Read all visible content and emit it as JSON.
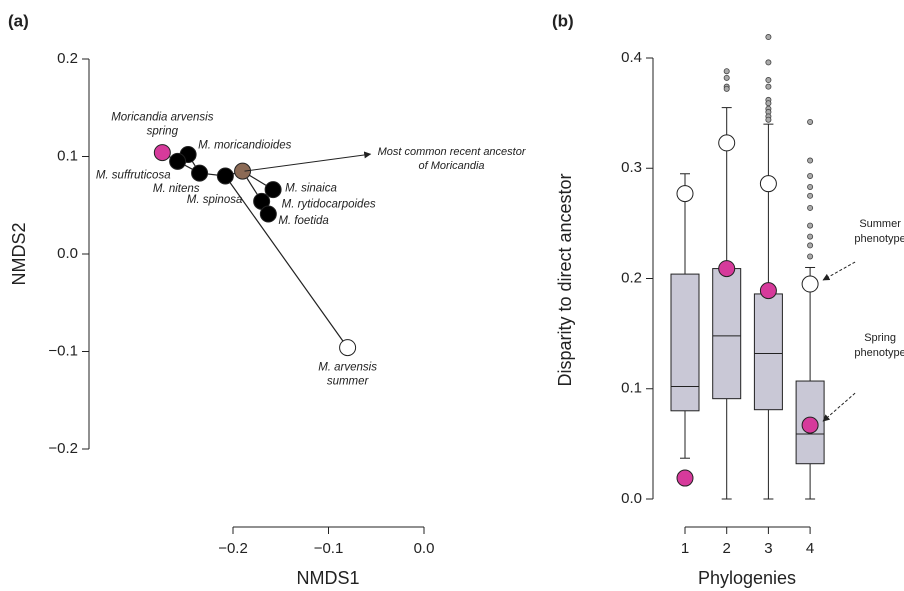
{
  "chart_data": [
    {
      "type": "scatter",
      "panel_label": "(a)",
      "xlabel": "NMDS1",
      "ylabel": "NMDS2",
      "xlim": [
        -0.3,
        0.0
      ],
      "ylim": [
        -0.2,
        0.2
      ],
      "xticks": [
        {
          "value": -0.2,
          "label": "−0.2"
        },
        {
          "value": -0.1,
          "label": "−0.1"
        },
        {
          "value": 0.0,
          "label": "0.0"
        }
      ],
      "yticks": [
        {
          "value": -0.2,
          "label": "−0.2"
        },
        {
          "value": -0.1,
          "label": "−0.1"
        },
        {
          "value": 0.0,
          "label": "0.0"
        },
        {
          "value": 0.1,
          "label": "0.1"
        },
        {
          "value": 0.2,
          "label": "0.2"
        }
      ],
      "labels": [
        [
          "Moricandia arvensis",
          "spring"
        ],
        [
          "M. moricandioides"
        ],
        [
          "M. suffruticosa"
        ],
        [
          "M. nitens"
        ],
        [
          "M. spinosa"
        ],
        null,
        [
          "M. sinaica"
        ],
        [
          "M. rytidocarpoides"
        ],
        [
          "M. foetida"
        ],
        [
          "M. arvensis",
          "summer"
        ]
      ],
      "x": [
        -0.274,
        -0.247,
        -0.258,
        -0.235,
        -0.208,
        -0.19,
        -0.158,
        -0.17,
        -0.163,
        -0.08
      ],
      "y": [
        0.104,
        0.102,
        0.095,
        0.083,
        0.08,
        0.085,
        0.066,
        0.054,
        0.041,
        -0.096
      ],
      "colors": [
        "#d63a9b",
        "#000000",
        "#000000",
        "#000000",
        "#000000",
        "#8b6a55",
        "#000000",
        "#000000",
        "#000000",
        "#ffffff"
      ],
      "annotation": [
        "Most common recent ancestor",
        "of Moricandia"
      ]
    },
    {
      "type": "box",
      "panel_label": "(b)",
      "xlabel": "Phylogenies",
      "ylabel": "Disparity to direct ancestor",
      "categories": [
        "1",
        "2",
        "3",
        "4"
      ],
      "ylim": [
        0,
        0.4
      ],
      "yticks": [
        {
          "value": 0,
          "label": "0.0"
        },
        0.1,
        0.2,
        0.3,
        0.4
      ],
      "box_color": "#c9c8d6",
      "whisker_low": [
        0.037,
        0.0,
        0.0,
        0.0
      ],
      "q1": [
        0.08,
        0.091,
        0.081,
        0.032
      ],
      "median": [
        0.102,
        0.148,
        0.132,
        0.059
      ],
      "q3": [
        0.204,
        0.209,
        0.186,
        0.107
      ],
      "whisker_high": [
        0.295,
        0.355,
        0.34,
        0.21
      ],
      "outliers": [
        [],
        [
          0.388,
          0.382,
          0.374,
          0.372
        ],
        [
          0.419,
          0.396,
          0.38,
          0.374,
          0.362,
          0.359,
          0.354,
          0.351,
          0.347,
          0.344
        ],
        [
          0.342,
          0.307,
          0.293,
          0.283,
          0.275,
          0.264,
          0.248,
          0.238,
          0.23,
          0.22
        ]
      ],
      "series": [
        {
          "name": [
            "Summer",
            "phenotype"
          ],
          "color": "#ffffff",
          "values": [
            0.277,
            0.323,
            0.286,
            0.195
          ]
        },
        {
          "name": [
            "Spring",
            "phenotype"
          ],
          "color": "#d63a9b",
          "values": [
            0.019,
            0.209,
            0.189,
            0.067
          ]
        }
      ]
    }
  ]
}
